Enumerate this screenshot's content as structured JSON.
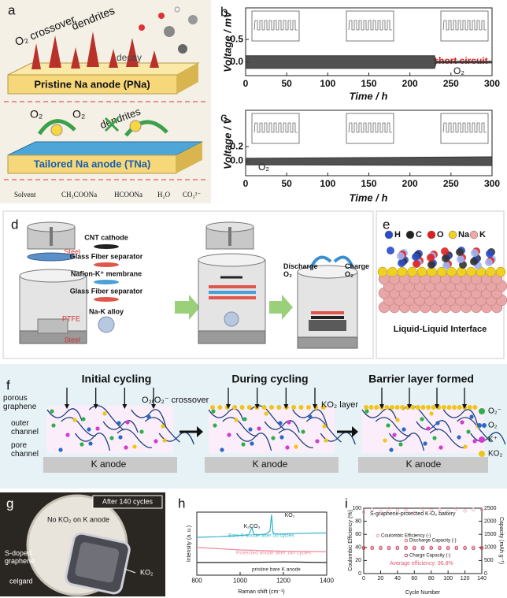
{
  "panel_a": {
    "label": "a",
    "o2_crossover": "O₂ crossover",
    "dendrites_top": "dendrites",
    "decay": "decay",
    "pristine_anode": "Pristine Na anode (PNa)",
    "o2_left": "O₂",
    "o2_right": "O₂",
    "dendrites_bottom": "dendrites",
    "tailored_anode": "Tailored Na anode (TNa)",
    "legend": [
      "Solvent",
      "CH₃COONa",
      "HCOONa",
      "H₂O",
      "CO₃²⁻"
    ]
  },
  "chart_data": [
    {
      "type": "area",
      "label": "b",
      "y_label": "Voltage / mV",
      "x_label": "Time / h",
      "annotations": [
        "short circuit",
        "O₂"
      ],
      "x": [
        0,
        230,
        232,
        300
      ],
      "upper": [
        0.14,
        0.14,
        0.02,
        0.02
      ],
      "lower": [
        -0.14,
        -0.14,
        -0.02,
        -0.02
      ],
      "color": "#333333",
      "xlim": [
        0,
        300
      ],
      "xticks": [
        0,
        50,
        100,
        150,
        200,
        250,
        300
      ],
      "ylim": [
        -0.3,
        1.2
      ],
      "yticks": [
        {
          "value": 0,
          "label": "0.0"
        },
        {
          "value": 0.5,
          "label": "0.5"
        }
      ]
    },
    {
      "type": "area",
      "label": "c",
      "y_label": "Voltage / V",
      "x_label": "Time / h",
      "annotations": [
        "O₂"
      ],
      "x": [
        0,
        300
      ],
      "upper": [
        0.04,
        0.06
      ],
      "lower": [
        -0.05,
        -0.06
      ],
      "color": "#333333",
      "xlim": [
        0,
        300
      ],
      "xticks": [
        0,
        50,
        100,
        150,
        200,
        250,
        300
      ],
      "ylim": [
        -0.2,
        0.7
      ],
      "yticks": [
        {
          "value": 0,
          "label": "0.0"
        },
        {
          "value": 0.2,
          "label": "0.2"
        }
      ]
    },
    {
      "type": "line",
      "label": "h",
      "y_label": "Intensity (a. u.)",
      "x_label": "Raman shift (cm⁻¹)",
      "annotations": [
        "K₂CO₃",
        "KO₂"
      ],
      "xlim": [
        800,
        1400
      ],
      "xticks": [
        800,
        1000,
        1200,
        1400
      ],
      "ylim": [
        0,
        10
      ],
      "series": [
        {
          "name": "Bare K anode after 50 cycles",
          "color": "#2fb3c8",
          "x": [
            800,
            900,
            1000,
            1040,
            1055,
            1062,
            1075,
            1120,
            1138,
            1145,
            1152,
            1170,
            1250,
            1400
          ],
          "values": [
            6.0,
            6.1,
            6.3,
            6.4,
            7.6,
            6.5,
            6.4,
            6.5,
            7.0,
            9.6,
            6.7,
            6.5,
            6.6,
            6.7
          ]
        },
        {
          "name": "Protected anode after 140 cycles",
          "color": "#f08a9a",
          "x": [
            800,
            1000,
            1200,
            1400
          ],
          "values": [
            4.4,
            4.0,
            3.8,
            3.7
          ]
        },
        {
          "name": "pristine bare K anode",
          "color": "#222222",
          "x": [
            800,
            1000,
            1200,
            1400
          ],
          "values": [
            2.0,
            2.0,
            2.1,
            2.0
          ]
        }
      ]
    },
    {
      "type": "scatter",
      "label": "i",
      "title": "S-graphene-protected K-O₂ battery",
      "annotations": [
        "Average efficiency: 96.8%"
      ],
      "y_label": "Coulombic Efficiency (%)",
      "y2_label": "Capacity (mAh g⁻¹)",
      "x_label": "Cycle Number",
      "x": [
        0,
        10,
        20,
        30,
        40,
        50,
        60,
        70,
        80,
        90,
        100,
        110,
        120,
        130,
        140
      ],
      "xlim": [
        0,
        140
      ],
      "xticks": [
        0,
        20,
        40,
        60,
        80,
        100,
        120,
        140
      ],
      "ylim": [
        0,
        100
      ],
      "yticks": [
        0,
        20,
        40,
        60,
        80,
        100
      ],
      "y2lim": [
        0,
        2500
      ],
      "y2ticks": [
        0,
        500,
        1000,
        1500,
        2000,
        2500
      ],
      "series": [
        {
          "name": "Coulombic Efficiency (-)",
          "color": "#e9a0ab",
          "values": [
            94,
            98,
            95,
            99,
            96,
            97,
            93,
            99,
            97,
            98,
            95,
            99,
            96,
            98,
            97
          ]
        },
        {
          "name": "Discharge Capacity (-)",
          "color": "#e05a70",
          "axis": "y2",
          "values": [
            1000,
            1000,
            1000,
            1000,
            1000,
            1000,
            1000,
            1000,
            1000,
            1000,
            1000,
            1000,
            1000,
            1000,
            1000
          ]
        },
        {
          "name": "Charge Capacity (-)",
          "color": "#b8405a",
          "axis": "y2",
          "values": [
            965,
            968,
            970,
            966,
            969,
            972,
            967,
            970,
            968,
            971,
            966,
            969,
            970,
            967,
            968
          ]
        }
      ]
    }
  ],
  "panel_d": {
    "label": "d",
    "steel_top": "Steel",
    "ptfe": "PTFE",
    "steel_bottom": "Steel",
    "layers": [
      "CNT cathode",
      "Glass Fiber separator",
      "Nafion-K⁺ membrane",
      "Glass Fiber separator",
      "Na-K alloy"
    ],
    "discharge": "Discharge O₂",
    "charge": "Charge O₂"
  },
  "panel_e": {
    "label": "e",
    "legend": [
      "H",
      "C",
      "O",
      "Na",
      "K"
    ],
    "caption": "Liquid-Liquid Interface"
  },
  "panel_f": {
    "label": "f",
    "stages": [
      "Initial cycling",
      "During cycling",
      "Barrier layer formed"
    ],
    "porous_graphene": "porous graphene",
    "outer_channel": "outer channel",
    "pore_channel": "pore channel",
    "crossover": "O₂/O₂⁻ crossover",
    "ko2_layer": "KO₂ layer",
    "anodes": [
      "K anode",
      "K anode",
      "K anode"
    ],
    "legend": [
      "O₂⁻",
      "O₂",
      "K⁺",
      "KO₂"
    ]
  },
  "panel_g": {
    "label": "g",
    "cycles": "After 140 cycles",
    "no_ko2": "No KO₂ on K anode",
    "s_doped": "S-doped graphene",
    "celgard": "celgard",
    "ko2": "KO₂"
  }
}
